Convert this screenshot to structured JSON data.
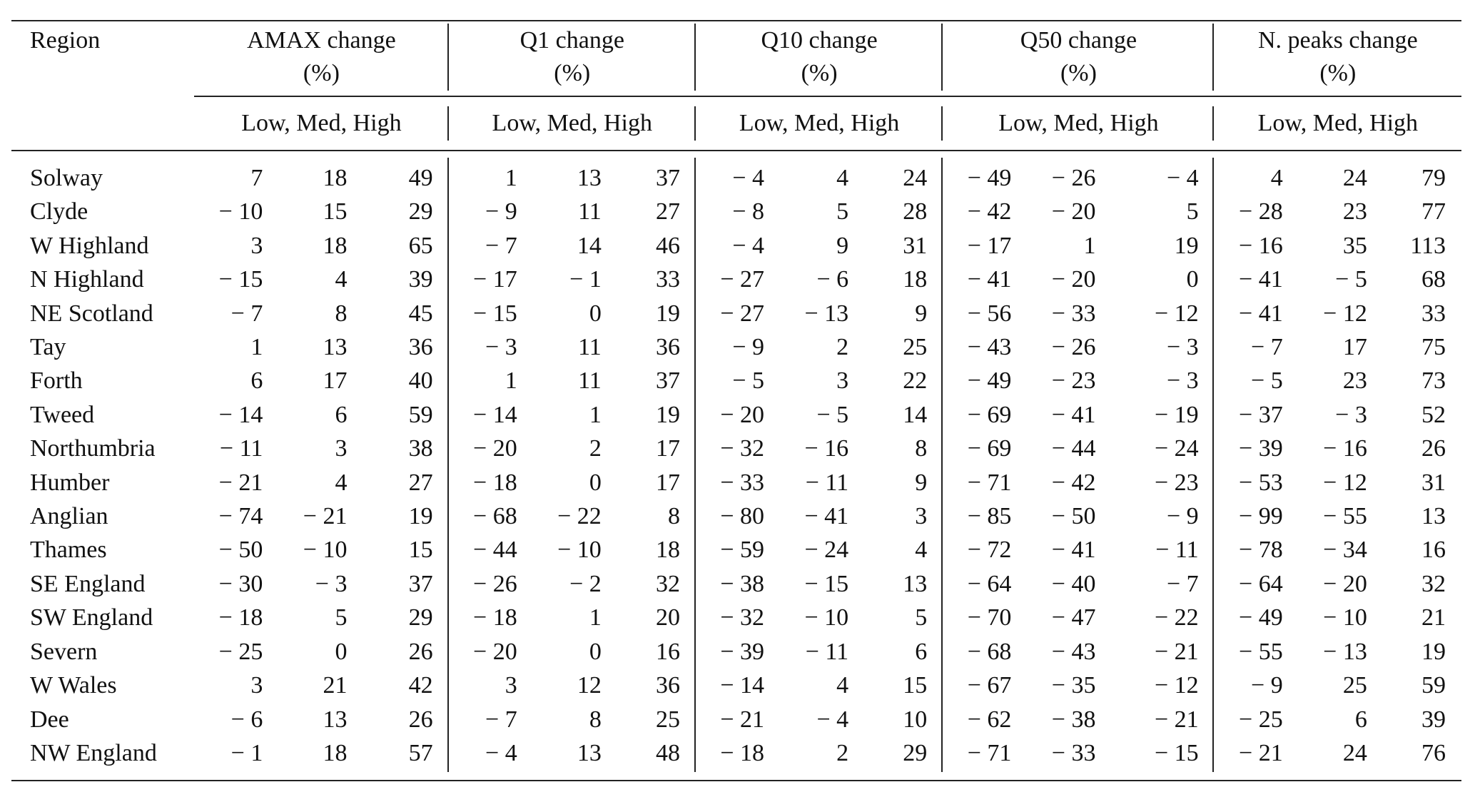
{
  "table": {
    "region_header": "Region",
    "groups": [
      {
        "line1": "AMAX change",
        "line2": "(%)",
        "sub": "Low, Med, High"
      },
      {
        "line1": "Q1 change",
        "line2": "(%)",
        "sub": "Low, Med, High"
      },
      {
        "line1": "Q10 change",
        "line2": "(%)",
        "sub": "Low, Med, High"
      },
      {
        "line1": "Q50 change",
        "line2": "(%)",
        "sub": "Low, Med, High"
      },
      {
        "line1": "N. peaks change",
        "line2": "(%)",
        "sub": "Low, Med, High"
      }
    ],
    "rows": [
      {
        "region": "Solway",
        "v": [
          "7",
          "18",
          "49",
          "1",
          "13",
          "37",
          "− 4",
          "4",
          "24",
          "− 49",
          "− 26",
          "− 4",
          "4",
          "24",
          "79"
        ]
      },
      {
        "region": "Clyde",
        "v": [
          "− 10",
          "15",
          "29",
          "− 9",
          "11",
          "27",
          "− 8",
          "5",
          "28",
          "− 42",
          "− 20",
          "5",
          "− 28",
          "23",
          "77"
        ]
      },
      {
        "region": "W Highland",
        "v": [
          "3",
          "18",
          "65",
          "− 7",
          "14",
          "46",
          "− 4",
          "9",
          "31",
          "− 17",
          "1",
          "19",
          "− 16",
          "35",
          "113"
        ]
      },
      {
        "region": "N Highland",
        "v": [
          "− 15",
          "4",
          "39",
          "− 17",
          "− 1",
          "33",
          "− 27",
          "− 6",
          "18",
          "− 41",
          "− 20",
          "0",
          "− 41",
          "− 5",
          "68"
        ]
      },
      {
        "region": "NE Scotland",
        "v": [
          "− 7",
          "8",
          "45",
          "− 15",
          "0",
          "19",
          "− 27",
          "− 13",
          "9",
          "− 56",
          "− 33",
          "− 12",
          "− 41",
          "− 12",
          "33"
        ]
      },
      {
        "region": "Tay",
        "v": [
          "1",
          "13",
          "36",
          "− 3",
          "11",
          "36",
          "− 9",
          "2",
          "25",
          "− 43",
          "− 26",
          "− 3",
          "− 7",
          "17",
          "75"
        ]
      },
      {
        "region": "Forth",
        "v": [
          "6",
          "17",
          "40",
          "1",
          "11",
          "37",
          "− 5",
          "3",
          "22",
          "− 49",
          "− 23",
          "− 3",
          "− 5",
          "23",
          "73"
        ]
      },
      {
        "region": "Tweed",
        "v": [
          "− 14",
          "6",
          "59",
          "− 14",
          "1",
          "19",
          "− 20",
          "− 5",
          "14",
          "− 69",
          "− 41",
          "− 19",
          "− 37",
          "− 3",
          "52"
        ]
      },
      {
        "region": "Northumbria",
        "v": [
          "− 11",
          "3",
          "38",
          "− 20",
          "2",
          "17",
          "− 32",
          "− 16",
          "8",
          "− 69",
          "− 44",
          "− 24",
          "− 39",
          "− 16",
          "26"
        ]
      },
      {
        "region": "Humber",
        "v": [
          "− 21",
          "4",
          "27",
          "− 18",
          "0",
          "17",
          "− 33",
          "− 11",
          "9",
          "− 71",
          "− 42",
          "− 23",
          "− 53",
          "− 12",
          "31"
        ]
      },
      {
        "region": "Anglian",
        "v": [
          "− 74",
          "− 21",
          "19",
          "− 68",
          "− 22",
          "8",
          "− 80",
          "− 41",
          "3",
          "− 85",
          "− 50",
          "− 9",
          "− 99",
          "− 55",
          "13"
        ]
      },
      {
        "region": "Thames",
        "v": [
          "− 50",
          "− 10",
          "15",
          "− 44",
          "− 10",
          "18",
          "− 59",
          "− 24",
          "4",
          "− 72",
          "− 41",
          "− 11",
          "− 78",
          "− 34",
          "16"
        ]
      },
      {
        "region": "SE England",
        "v": [
          "− 30",
          "− 3",
          "37",
          "− 26",
          "− 2",
          "32",
          "− 38",
          "− 15",
          "13",
          "− 64",
          "− 40",
          "− 7",
          "− 64",
          "− 20",
          "32"
        ]
      },
      {
        "region": "SW England",
        "v": [
          "− 18",
          "5",
          "29",
          "− 18",
          "1",
          "20",
          "− 32",
          "− 10",
          "5",
          "− 70",
          "− 47",
          "− 22",
          "− 49",
          "− 10",
          "21"
        ]
      },
      {
        "region": "Severn",
        "v": [
          "− 25",
          "0",
          "26",
          "− 20",
          "0",
          "16",
          "− 39",
          "− 11",
          "6",
          "− 68",
          "− 43",
          "− 21",
          "− 55",
          "− 13",
          "19"
        ]
      },
      {
        "region": "W Wales",
        "v": [
          "3",
          "21",
          "42",
          "3",
          "12",
          "36",
          "− 14",
          "4",
          "15",
          "− 67",
          "− 35",
          "− 12",
          "− 9",
          "25",
          "59"
        ]
      },
      {
        "region": "Dee",
        "v": [
          "− 6",
          "13",
          "26",
          "− 7",
          "8",
          "25",
          "− 21",
          "− 4",
          "10",
          "− 62",
          "− 38",
          "− 21",
          "− 25",
          "6",
          "39"
        ]
      },
      {
        "region": "NW England",
        "v": [
          "− 1",
          "18",
          "57",
          "− 4",
          "13",
          "48",
          "− 18",
          "2",
          "29",
          "− 71",
          "− 33",
          "− 15",
          "− 21",
          "24",
          "76"
        ]
      }
    ]
  }
}
